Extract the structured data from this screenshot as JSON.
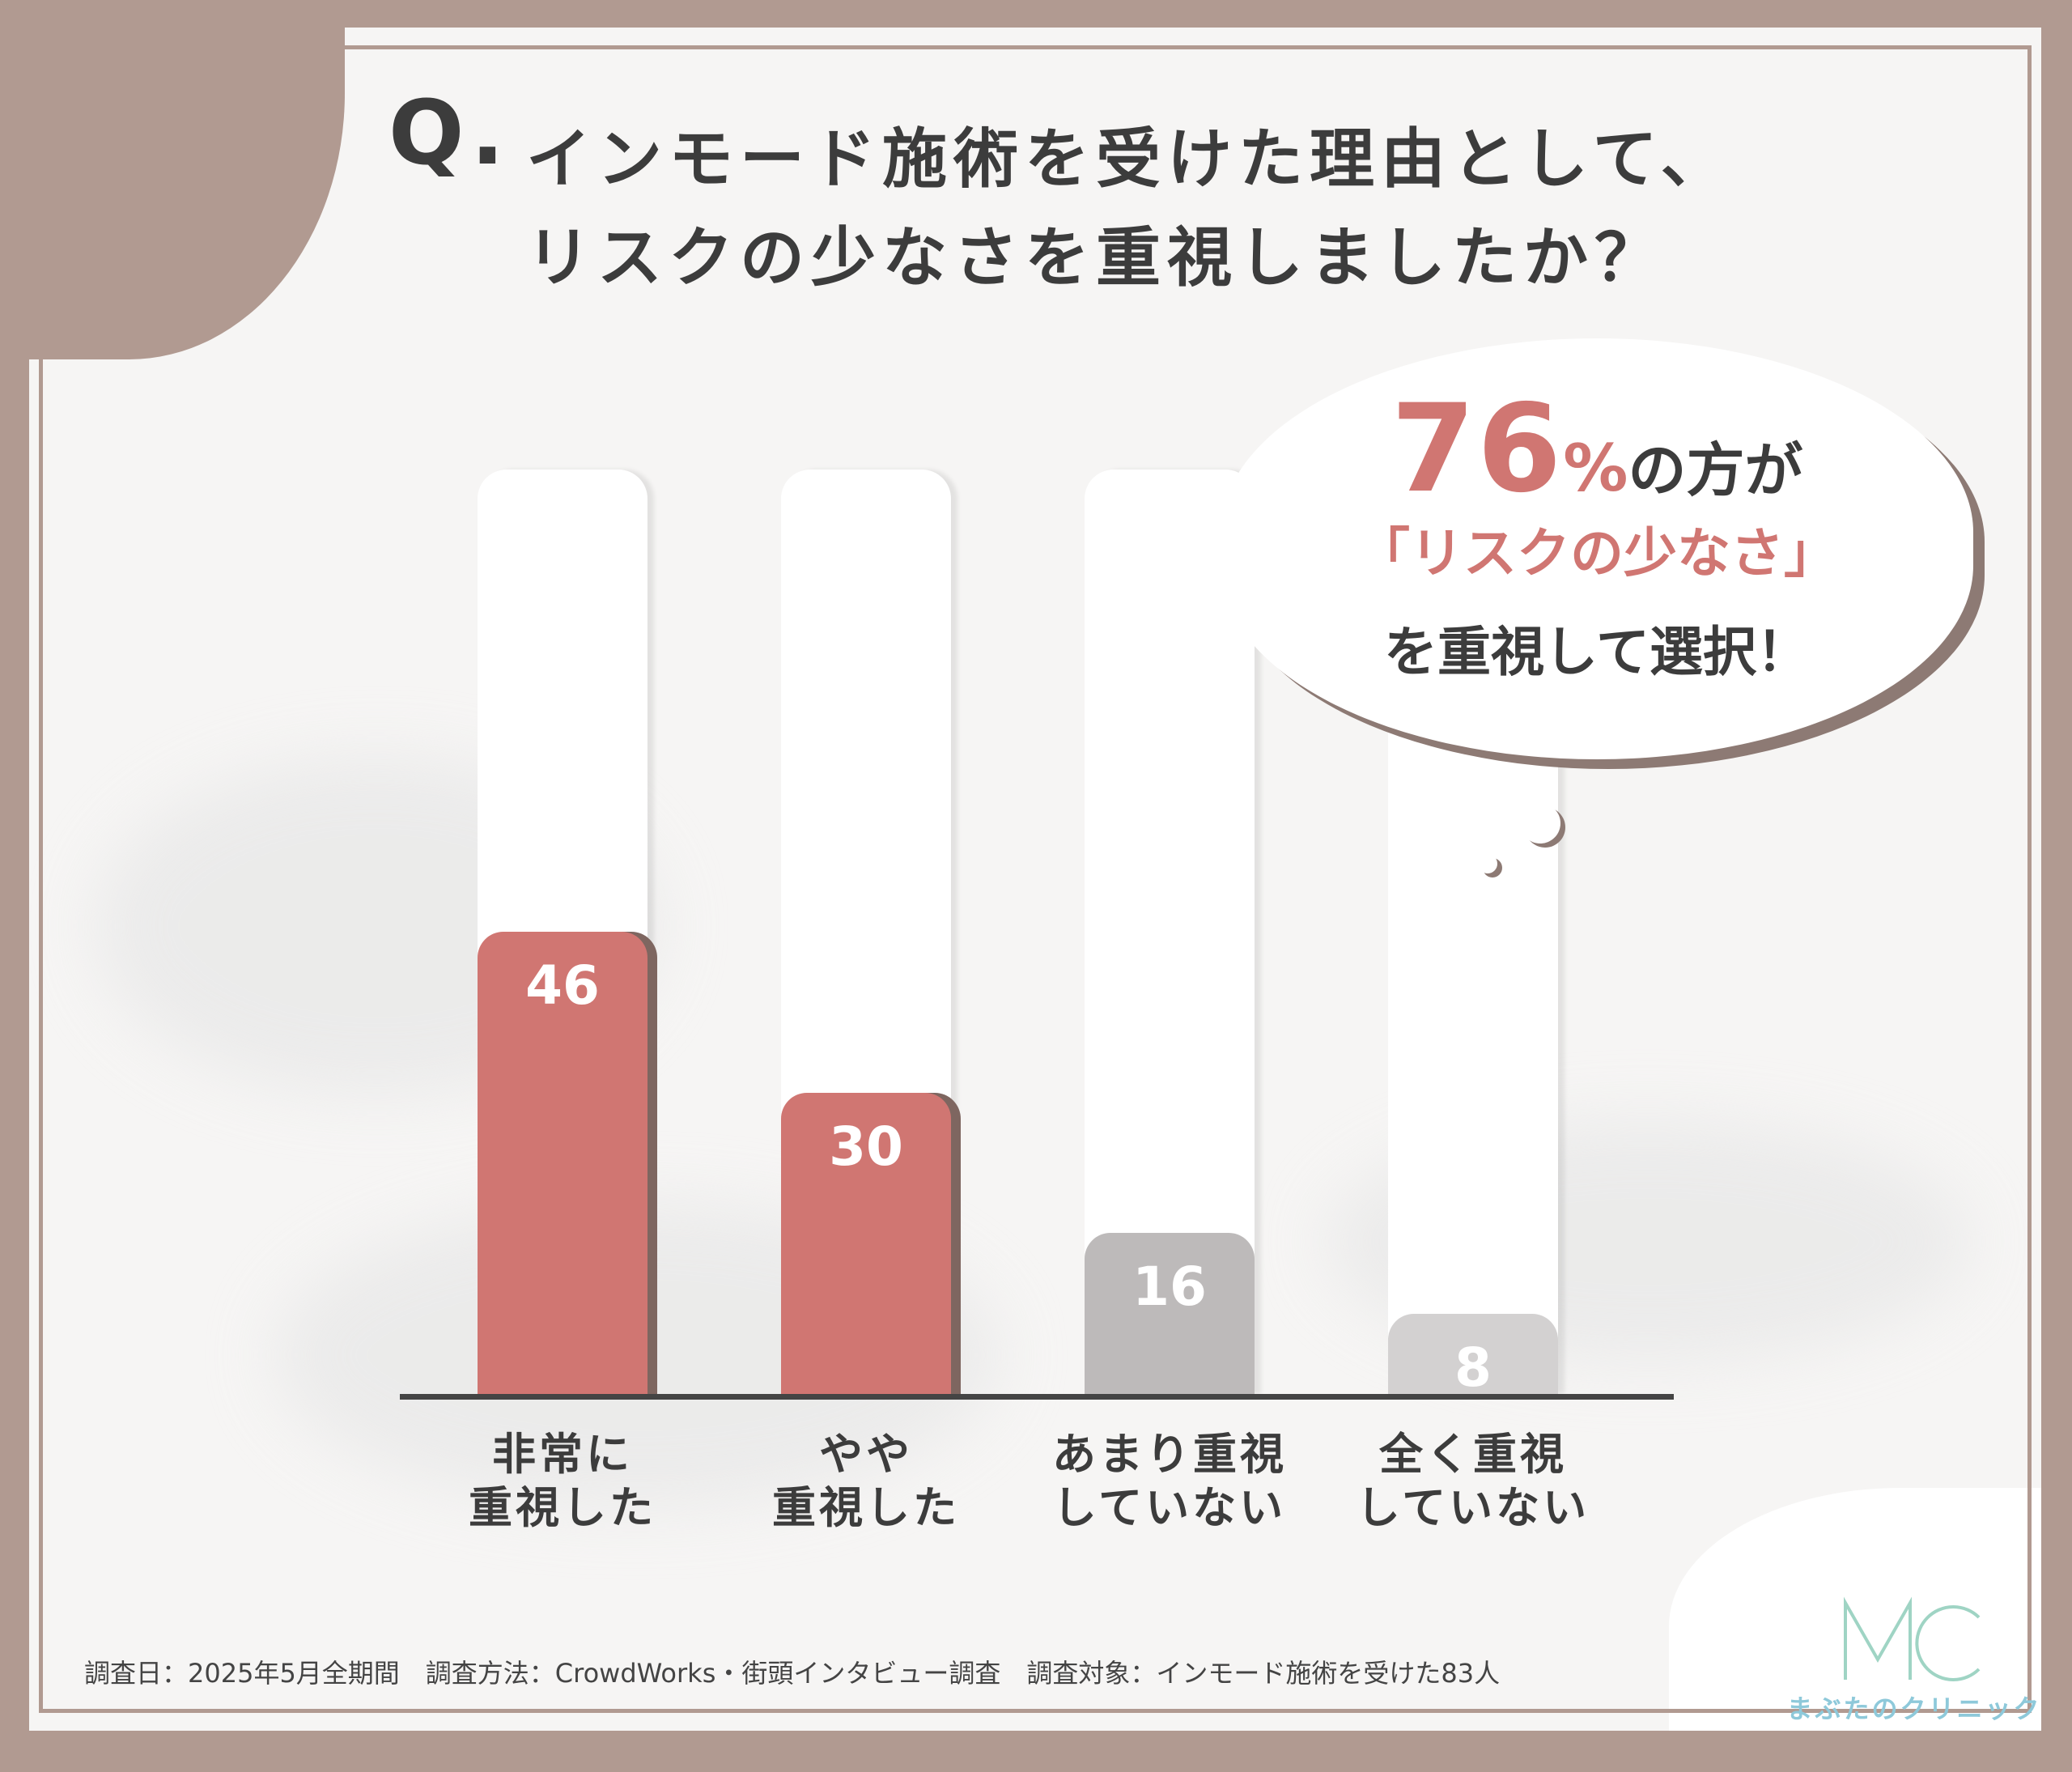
{
  "title": {
    "q_mark": "Q.",
    "line1": "インモード施術を受けた理由として、",
    "line2": "リスクの少なさを重視しましたか？"
  },
  "callout": {
    "percent": "76",
    "percent_sign": "%",
    "line1_suffix": "の方が",
    "line2": "「リスクの少なさ」",
    "line3": "を重視して選択！"
  },
  "chart_data": {
    "type": "bar",
    "categories": [
      "非常に\n重視した",
      "やや\n重視した",
      "あまり重視\nしていない",
      "全く重視\nしていない"
    ],
    "values": [
      46,
      30,
      16,
      8
    ],
    "colors": [
      "#d07672",
      "#d07672",
      "#bdbaba",
      "#d3d1d1"
    ],
    "shadow_colors": [
      "#7e6660",
      "#7e6660",
      "",
      ""
    ],
    "ylim": [
      0,
      92
    ],
    "title": "",
    "xlabel": "",
    "ylabel": ""
  },
  "footer": "調査日：2025年5月全期間　調査方法：CrowdWorks・街頭インタビュー調査　調査対象：インモード施術を受けた83人",
  "logo": {
    "mark": "MC",
    "name": "まぶたのクリニック"
  }
}
